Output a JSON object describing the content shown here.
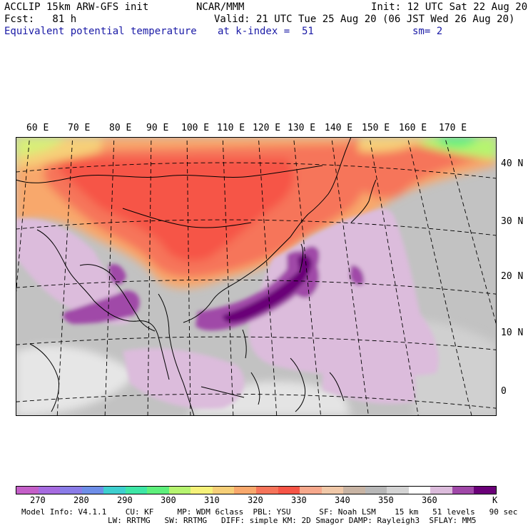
{
  "header": {
    "line1_left": "ACCLIP 15km ARW-GFS init",
    "line1_center": "NCAR/MMM",
    "line1_right": "Init: 12 UTC Sat 22 Aug 20",
    "line2_left": "Fcst:   81 h",
    "line2_right": "Valid: 21 UTC Tue 25 Aug 20 (06 JST Wed 26 Aug 20)",
    "line3_left": "Equivalent potential temperature",
    "line3_center": "at k-index =  51",
    "line3_right": "sm= 2"
  },
  "map": {
    "lon_labels": [
      "60 E",
      "70 E",
      "80 E",
      "90 E",
      "100 E",
      "110 E",
      "120 E",
      "130 E",
      "140 E",
      "150 E",
      "160 E",
      "170 E"
    ],
    "lat_labels": [
      "40 N",
      "30 N",
      "20 N",
      "10 N",
      "0"
    ]
  },
  "colorbar": {
    "colors": [
      "#c45fc8",
      "#a66be0",
      "#8a7ce8",
      "#6e8ee8",
      "#3ecfcf",
      "#3ee6a6",
      "#5ef07c",
      "#b6f470",
      "#f6f27a",
      "#f6cf78",
      "#f8a86c",
      "#f6745a",
      "#f65446",
      "#f6a88c",
      "#f0c8a8",
      "#c8b4a4",
      "#b8b8b8",
      "#d4d4d4",
      "#ffffff",
      "#dcbcdc",
      "#a048a8",
      "#6a0078"
    ],
    "labels": [
      "270",
      "280",
      "290",
      "300",
      "310",
      "320",
      "330",
      "340",
      "350",
      "360",
      "K"
    ]
  },
  "footer": {
    "line1": "Model Info: V4.1.1    CU: KF     MP: WDM 6class  PBL: YSU      SF: Noah LSM    15 km   51 levels   90 sec",
    "line2": "LW: RRTMG   SW: RRTMG   DIFF: simple KM: 2D Smagor DAMP: Rayleigh3  SFLAY: MM5"
  }
}
